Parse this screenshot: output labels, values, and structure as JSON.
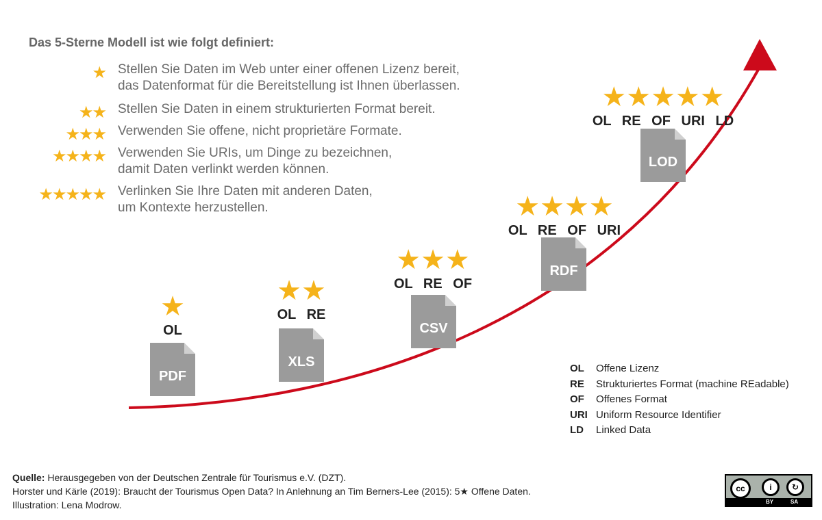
{
  "intro": {
    "title": "Das 5-Sterne Modell ist wie folgt definiert:",
    "rules": [
      {
        "stars": 1,
        "lines": [
          "Stellen Sie Daten im Web unter einer offenen Lizenz bereit,",
          "das Datenformat für die Bereitstellung ist Ihnen überlassen."
        ]
      },
      {
        "stars": 2,
        "lines": [
          "Stellen Sie Daten in einem strukturierten Format bereit."
        ]
      },
      {
        "stars": 3,
        "lines": [
          "Verwenden Sie offene, nicht proprietäre Formate."
        ]
      },
      {
        "stars": 4,
        "lines": [
          "Verwenden Sie URIs, um Dinge zu bezeichnen,",
          "damit Daten verlinkt werden können."
        ]
      },
      {
        "stars": 5,
        "lines": [
          "Verlinken Sie Ihre Daten mit anderen Daten,",
          "um Kontexte herzustellen."
        ]
      }
    ]
  },
  "levels": [
    {
      "stars": 1,
      "abbrs": [
        "OL"
      ],
      "format": "PDF"
    },
    {
      "stars": 2,
      "abbrs": [
        "OL",
        "RE"
      ],
      "format": "XLS"
    },
    {
      "stars": 3,
      "abbrs": [
        "OL",
        "RE",
        "OF"
      ],
      "format": "CSV"
    },
    {
      "stars": 4,
      "abbrs": [
        "OL",
        "RE",
        "OF",
        "URI"
      ],
      "format": "RDF"
    },
    {
      "stars": 5,
      "abbrs": [
        "OL",
        "RE",
        "OF",
        "URI",
        "LD"
      ],
      "format": "LOD"
    }
  ],
  "legend": [
    {
      "abbr": "OL",
      "text": "Offene Lizenz"
    },
    {
      "abbr": "RE",
      "text": "Strukturiertes Format (machine REadable)"
    },
    {
      "abbr": "OF",
      "text": "Offenes Format"
    },
    {
      "abbr": "URI",
      "text": "Uniform Resource Identifier"
    },
    {
      "abbr": "LD",
      "text": "Linked Data"
    }
  ],
  "footer": {
    "source_label": "Quelle:",
    "source_text": " Herausgegeben von der Deutschen Zentrale für Tourismus e.V. (DZT).",
    "line2": "Horster und Kärle (2019): Braucht der Tourismus Open Data? In Anlehnung an Tim Berners-Lee (2015): 5★ Offene Daten.",
    "line3": "Illustration: Lena Modrow."
  },
  "license": {
    "by": "BY",
    "sa": "SA"
  },
  "colors": {
    "star": "#f5b31a",
    "arrow": "#cc0a1b",
    "doc": "#9b9b9b"
  }
}
